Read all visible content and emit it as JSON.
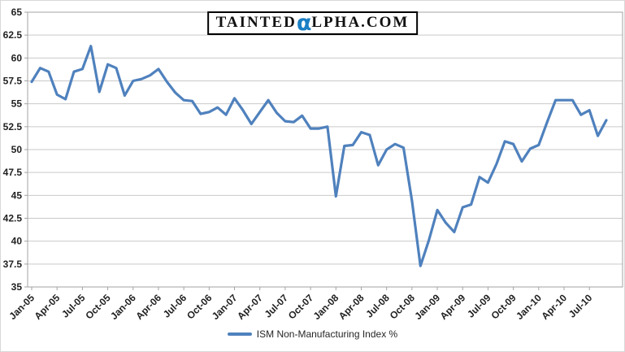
{
  "logo": {
    "part1": "TAINTED",
    "alpha": "α",
    "part2": "LPHA.COM",
    "alpha_color": "#1b7fc4"
  },
  "legend": {
    "label": "ISM Non-Manufacturing Index %"
  },
  "chart_data": {
    "type": "line",
    "title": "",
    "xlabel": "",
    "ylabel": "",
    "ylim": [
      35,
      65
    ],
    "ytick_step": 2.5,
    "ytick_labels": [
      "65",
      "62.5",
      "60",
      "57.5",
      "55",
      "52.5",
      "50",
      "47.5",
      "45",
      "42.5",
      "40",
      "37.5",
      "35"
    ],
    "xtick_every": 3,
    "xtick_labels": [
      "Jan-05",
      "Apr-05",
      "Jul-05",
      "Oct-05",
      "Jan-06",
      "Apr-06",
      "Jul-06",
      "Oct-06",
      "Jan-07",
      "Apr-07",
      "Jul-07",
      "Oct-07",
      "Jan-08",
      "Apr-08",
      "Jul-08",
      "Oct-08",
      "Jan-09",
      "Apr-09",
      "Jul-09",
      "Oct-09",
      "Jan-10",
      "Apr-10",
      "Jul-10"
    ],
    "grid": true,
    "legend_position": "bottom",
    "grid_color": "#c9c9c9",
    "axis_color": "#a3a3a3",
    "label_color": "#1f1f1f",
    "categories": [
      "Jan-05",
      "Feb-05",
      "Mar-05",
      "Apr-05",
      "May-05",
      "Jun-05",
      "Jul-05",
      "Aug-05",
      "Sep-05",
      "Oct-05",
      "Nov-05",
      "Dec-05",
      "Jan-06",
      "Feb-06",
      "Mar-06",
      "Apr-06",
      "May-06",
      "Jun-06",
      "Jul-06",
      "Aug-06",
      "Sep-06",
      "Oct-06",
      "Nov-06",
      "Dec-06",
      "Jan-07",
      "Feb-07",
      "Mar-07",
      "Apr-07",
      "May-07",
      "Jun-07",
      "Jul-07",
      "Aug-07",
      "Sep-07",
      "Oct-07",
      "Nov-07",
      "Dec-07",
      "Jan-08",
      "Feb-08",
      "Mar-08",
      "Apr-08",
      "May-08",
      "Jun-08",
      "Jul-08",
      "Aug-08",
      "Sep-08",
      "Oct-08",
      "Nov-08",
      "Dec-08",
      "Jan-09",
      "Feb-09",
      "Mar-09",
      "Apr-09",
      "May-09",
      "Jun-09",
      "Jul-09",
      "Aug-09",
      "Sep-09",
      "Oct-09",
      "Nov-09",
      "Dec-09",
      "Jan-10",
      "Feb-10",
      "Mar-10",
      "Apr-10",
      "May-10",
      "Jun-10",
      "Jul-10",
      "Aug-10",
      "Sep-10"
    ],
    "series": [
      {
        "name": "ISM Non-Manufacturing Index %",
        "color": "#4F81BD",
        "values": [
          57.4,
          58.9,
          58.5,
          56.0,
          55.5,
          58.5,
          58.8,
          61.3,
          56.3,
          59.3,
          58.9,
          55.9,
          57.5,
          57.7,
          58.1,
          58.8,
          57.4,
          56.2,
          55.4,
          55.3,
          53.9,
          54.1,
          54.6,
          53.8,
          55.6,
          54.3,
          52.8,
          54.1,
          55.4,
          54.0,
          53.1,
          53.0,
          53.7,
          52.3,
          52.3,
          52.5,
          44.9,
          50.4,
          50.5,
          51.9,
          51.6,
          48.3,
          50.0,
          50.6,
          50.2,
          44.4,
          37.3,
          40.1,
          43.4,
          42.0,
          41.0,
          43.7,
          44.0,
          47.0,
          46.4,
          48.4,
          50.9,
          50.6,
          48.7,
          50.1,
          50.5,
          53.0,
          55.4,
          55.4,
          55.4,
          53.8,
          54.3,
          51.5,
          53.2
        ]
      }
    ]
  }
}
